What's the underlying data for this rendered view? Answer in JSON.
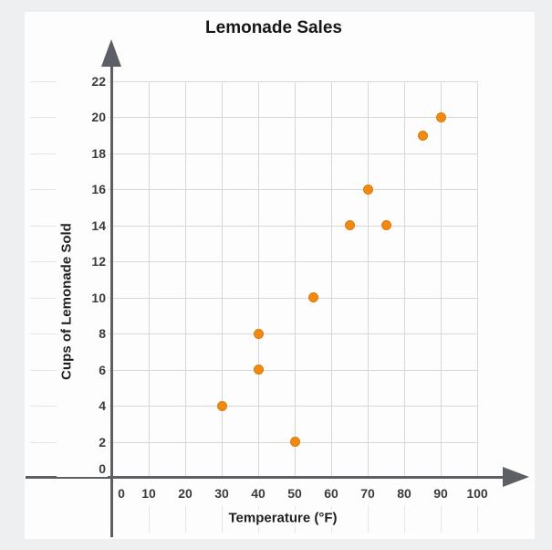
{
  "chart_data": {
    "type": "scatter",
    "title": "Lemonade Sales",
    "xlabel": "Temperature (°F)",
    "ylabel": "Cups of Lemonade Sold",
    "x_ticks": [
      0,
      10,
      20,
      30,
      40,
      50,
      60,
      70,
      80,
      90,
      100
    ],
    "y_ticks": [
      0,
      2,
      4,
      6,
      8,
      10,
      12,
      14,
      16,
      18,
      20,
      22
    ],
    "xlim": [
      0,
      105
    ],
    "ylim": [
      0,
      23
    ],
    "grid": true,
    "legend": "none",
    "points": [
      {
        "x": 30,
        "y": 4
      },
      {
        "x": 40,
        "y": 6
      },
      {
        "x": 40,
        "y": 8
      },
      {
        "x": 50,
        "y": 2
      },
      {
        "x": 55,
        "y": 10
      },
      {
        "x": 65,
        "y": 14
      },
      {
        "x": 70,
        "y": 16
      },
      {
        "x": 75,
        "y": 14
      },
      {
        "x": 85,
        "y": 19
      },
      {
        "x": 90,
        "y": 20
      }
    ]
  },
  "colors": {
    "point_fill": "#F08A12",
    "point_edge": "#DD7A06",
    "axis": "#5c6064",
    "grid_inner": "#d6d8da",
    "grid_outer": "#e3e5e7",
    "page_background": "#edeff1",
    "panel_background": "#fdfdfd"
  }
}
